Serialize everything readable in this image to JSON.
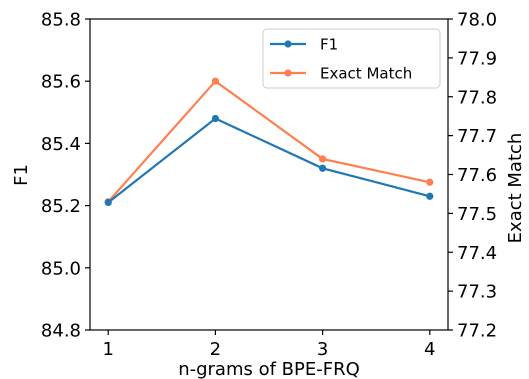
{
  "chart_data": {
    "type": "line",
    "x": [
      1,
      2,
      3,
      4
    ],
    "xlabel": "n-grams of BPE-FRQ",
    "xticks": [
      "1",
      "2",
      "3",
      "4"
    ],
    "left_axis": {
      "label": "F1",
      "ylim": [
        84.8,
        85.8
      ],
      "ticks": [
        "84.8",
        "85.0",
        "85.2",
        "85.4",
        "85.6",
        "85.8"
      ]
    },
    "right_axis": {
      "label": "Exact Match",
      "ylim": [
        77.2,
        78.0
      ],
      "ticks": [
        "77.2",
        "77.3",
        "77.4",
        "77.5",
        "77.6",
        "77.7",
        "77.8",
        "77.9",
        "78.0"
      ]
    },
    "series": [
      {
        "name": "F1",
        "axis": "left",
        "color": "#1f77b4",
        "values": [
          85.21,
          85.48,
          85.32,
          85.23
        ]
      },
      {
        "name": "Exact Match",
        "axis": "right",
        "color": "#ff7f50",
        "values": [
          77.53,
          77.84,
          77.64,
          77.58
        ]
      }
    ],
    "legend": "top-right",
    "grid": false
  }
}
